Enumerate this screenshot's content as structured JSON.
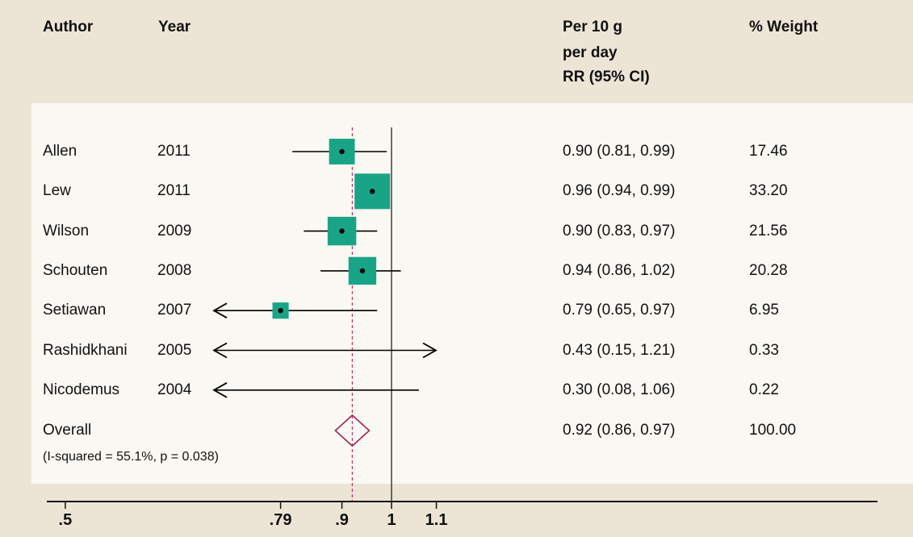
{
  "header": {
    "author": "Author",
    "year": "Year",
    "effect_line1": "Per 10 g",
    "effect_line2": "per day",
    "effect_line3": "RR (95% CI)",
    "weight": "% Weight"
  },
  "chart_data": {
    "type": "forest",
    "x_scale": "log",
    "xlim": [
      0.4,
      1.7
    ],
    "null_line": 1,
    "overall_line": 0.92,
    "ticks": [
      {
        "value": 0.5,
        "label": ".5"
      },
      {
        "value": 0.79,
        "label": ".79"
      },
      {
        "value": 0.9,
        "label": ".9"
      },
      {
        "value": 1,
        "label": "1"
      },
      {
        "value": 1.1,
        "label": "1.1"
      }
    ],
    "studies": [
      {
        "author": "Allen",
        "year": "2011",
        "rr": 0.9,
        "lo": 0.81,
        "hi": 0.99,
        "ci_text": "0.90 (0.81, 0.99)",
        "weight": 17.46,
        "weight_text": "17.46"
      },
      {
        "author": "Lew",
        "year": "2011",
        "rr": 0.96,
        "lo": 0.94,
        "hi": 0.99,
        "ci_text": "0.96 (0.94, 0.99)",
        "weight": 33.2,
        "weight_text": "33.20"
      },
      {
        "author": "Wilson",
        "year": "2009",
        "rr": 0.9,
        "lo": 0.83,
        "hi": 0.97,
        "ci_text": "0.90 (0.83, 0.97)",
        "weight": 21.56,
        "weight_text": "21.56"
      },
      {
        "author": "Schouten",
        "year": "2008",
        "rr": 0.94,
        "lo": 0.86,
        "hi": 1.02,
        "ci_text": "0.94 (0.86, 1.02)",
        "weight": 20.28,
        "weight_text": "20.28"
      },
      {
        "author": "Setiawan",
        "year": "2007",
        "rr": 0.79,
        "lo": 0.65,
        "hi": 0.97,
        "ci_text": "0.79 (0.65, 0.97)",
        "weight": 6.95,
        "weight_text": "6.95"
      },
      {
        "author": "Rashidkhani",
        "year": "2005",
        "rr": 0.43,
        "lo": 0.15,
        "hi": 1.21,
        "ci_text": "0.43 (0.15, 1.21)",
        "weight": 0.33,
        "weight_text": "0.33"
      },
      {
        "author": "Nicodemus",
        "year": "2004",
        "rr": 0.3,
        "lo": 0.08,
        "hi": 1.06,
        "ci_text": "0.30 (0.08, 1.06)",
        "weight": 0.22,
        "weight_text": "0.22"
      }
    ],
    "overall": {
      "label": "Overall",
      "note": "(I-squared = 55.1%, p = 0.038)",
      "rr": 0.92,
      "lo": 0.86,
      "hi": 0.97,
      "ci_text": "0.92 (0.86, 0.97)",
      "weight_text": "100.00"
    },
    "colors": {
      "box": "#1aa487",
      "diamond": "#a0245a",
      "overall_line": "#c0306a",
      "axis": "#111111"
    }
  }
}
